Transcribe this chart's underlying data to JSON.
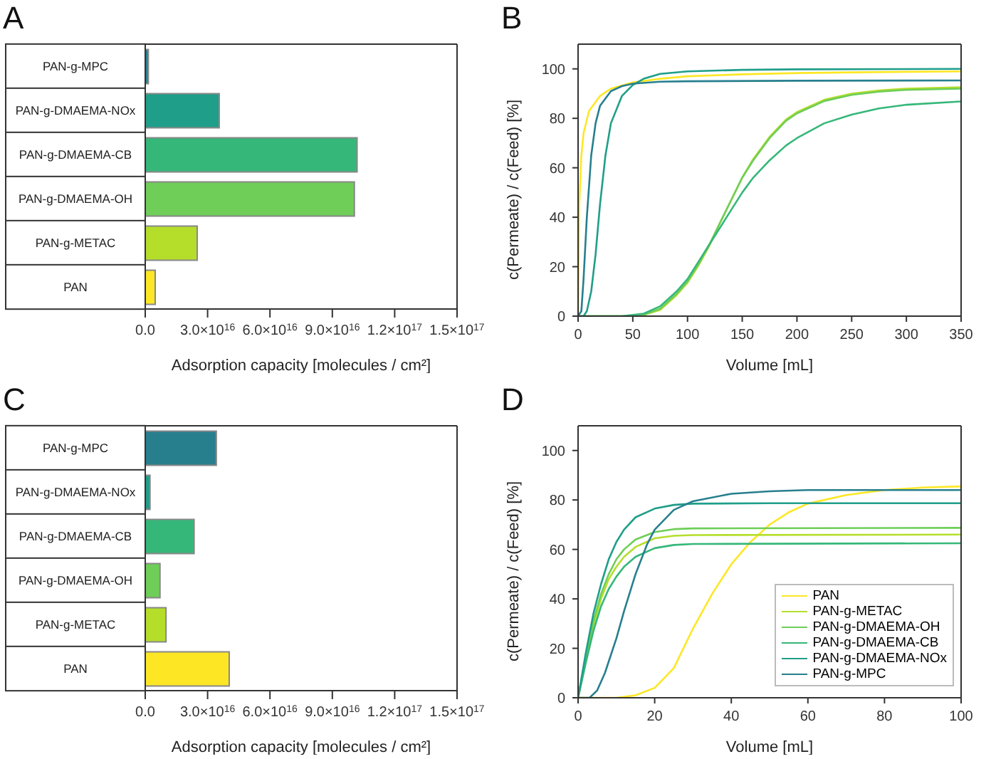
{
  "chart_data": [
    {
      "type": "bar",
      "title": "A",
      "orientation": "horizontal",
      "xlabel": "Adsorption capacity [molecules / cm²]",
      "categories": [
        "PAN-g-MPC",
        "PAN-g-DMAEMA-NOx",
        "PAN-g-DMAEMA-CB",
        "PAN-g-DMAEMA-OH",
        "PAN-g-METAC",
        "PAN"
      ],
      "values": [
        1500000000000000.0,
        3.56e+16,
        1.019e+17,
        1.006e+17,
        2.5e+16,
        4800000000000000.0
      ],
      "colors": [
        "#277f8e",
        "#1f9e89",
        "#35b779",
        "#6ece58",
        "#b5de2b",
        "#fde725"
      ],
      "xlim": [
        0,
        1.5e+17
      ],
      "xticks": [
        {
          "value": 0,
          "label": "0.0"
        },
        {
          "value": 3e+16,
          "label": "3.0×10$^{16}$"
        },
        {
          "value": 6e+16,
          "label": "6.0×10$^{16}$"
        },
        {
          "value": 9e+16,
          "label": "9.0×10$^{16}$"
        },
        {
          "value": 1.2e+17,
          "label": "1.2×10$^{17}$"
        },
        {
          "value": 1.5e+17,
          "label": "1.5×10$^{17}$"
        }
      ]
    },
    {
      "type": "line",
      "title": "B",
      "xlabel": "Volume [mL]",
      "ylabel": "c(Permeate) / c(Feed) [%]",
      "xlim": [
        0,
        350
      ],
      "xticks": [
        0,
        50,
        100,
        150,
        200,
        250,
        300,
        350
      ],
      "ylim": [
        0,
        110
      ],
      "yticks": [
        0,
        20,
        40,
        60,
        80,
        100
      ],
      "series": [
        {
          "color": "#fde725",
          "x": [
            0,
            1,
            3,
            5,
            10,
            20,
            30,
            50,
            75,
            100,
            150,
            200,
            250,
            300,
            350
          ],
          "values": [
            0,
            45,
            65,
            74,
            83,
            89,
            92,
            94.5,
            96,
            97,
            97.8,
            98.3,
            98.6,
            98.8,
            99
          ]
        },
        {
          "color": "#b5de2b",
          "x": [
            0,
            50,
            60,
            75,
            90,
            100,
            110,
            120,
            130,
            140,
            150,
            160,
            175,
            190,
            200,
            225,
            250,
            275,
            300,
            350
          ],
          "values": [
            0,
            0,
            0.5,
            2.5,
            8.5,
            13.5,
            20.5,
            28.5,
            38,
            47,
            56,
            63.5,
            72.5,
            79.5,
            82.5,
            87.5,
            90,
            91.3,
            92,
            92.6
          ]
        },
        {
          "color": "#6ece58",
          "x": [
            0,
            50,
            60,
            75,
            90,
            100,
            110,
            120,
            130,
            140,
            150,
            160,
            175,
            190,
            200,
            225,
            250,
            275,
            300,
            350
          ],
          "values": [
            0,
            0,
            0.5,
            3,
            9,
            14,
            21,
            29,
            38,
            47,
            56,
            63,
            72,
            79,
            82,
            87,
            89.5,
            90.8,
            91.5,
            92
          ]
        },
        {
          "color": "#35b779",
          "x": [
            0,
            40,
            60,
            75,
            90,
            100,
            110,
            120,
            130,
            140,
            150,
            160,
            175,
            190,
            200,
            225,
            250,
            275,
            300,
            350
          ],
          "values": [
            0,
            0,
            1,
            4,
            10,
            15,
            22,
            29,
            36,
            43,
            50,
            56,
            63,
            69,
            72,
            78,
            81.5,
            84,
            85.5,
            86.8
          ]
        },
        {
          "color": "#1f9e89",
          "x": [
            0,
            5,
            8,
            12,
            16,
            20,
            25,
            30,
            40,
            50,
            60,
            75,
            100,
            150,
            200,
            350
          ],
          "values": [
            0,
            0,
            2,
            10,
            25,
            45,
            65,
            78,
            89,
            93.5,
            96,
            98,
            99,
            99.6,
            99.8,
            100
          ]
        },
        {
          "color": "#277f8e",
          "x": [
            0,
            3,
            5,
            8,
            12,
            16,
            20,
            30,
            40,
            50,
            75,
            100,
            200,
            350
          ],
          "values": [
            0,
            2,
            15,
            40,
            65,
            78,
            85,
            91,
            93,
            94,
            94.8,
            95,
            95.2,
            95.3
          ]
        }
      ]
    },
    {
      "type": "bar",
      "title": "C",
      "orientation": "horizontal",
      "xlabel": "Adsorption capacity [molecules / cm²]",
      "categories": [
        "PAN-g-MPC",
        "PAN-g-DMAEMA-NOx",
        "PAN-g-DMAEMA-CB",
        "PAN-g-DMAEMA-OH",
        "PAN-g-METAC",
        "PAN"
      ],
      "values": [
        3.42e+16,
        2300000000000000.0,
        2.35e+16,
        7100000000000000.0,
        1e+16,
        4.04e+16
      ],
      "colors": [
        "#277f8e",
        "#1f9e89",
        "#35b779",
        "#6ece58",
        "#b5de2b",
        "#fde725"
      ],
      "xlim": [
        0,
        1.5e+17
      ],
      "xticks": [
        {
          "value": 0,
          "label": "0.0"
        },
        {
          "value": 3e+16,
          "label": "3.0×10$^{16}$"
        },
        {
          "value": 6e+16,
          "label": "6.0×10$^{16}$"
        },
        {
          "value": 9e+16,
          "label": "9.0×10$^{16}$"
        },
        {
          "value": 1.2e+17,
          "label": "1.2×10$^{17}$"
        },
        {
          "value": 1.5e+17,
          "label": "1.5×10$^{17}$"
        }
      ]
    },
    {
      "type": "line",
      "title": "D",
      "xlabel": "Volume [mL]",
      "ylabel": "c(Permeate) / c(Feed) [%]",
      "legend": "bottom right",
      "xlim": [
        0,
        100
      ],
      "xticks": [
        0,
        20,
        40,
        60,
        80,
        100
      ],
      "ylim": [
        0,
        110
      ],
      "yticks": [
        0,
        20,
        40,
        60,
        80,
        100
      ],
      "series": [
        {
          "name": "PAN",
          "color": "#fde725",
          "x": [
            0,
            10,
            15,
            20,
            25,
            30,
            35,
            40,
            45,
            50,
            55,
            60,
            70,
            80,
            90,
            100
          ],
          "values": [
            0,
            0,
            1,
            4,
            12,
            28,
            42,
            54,
            63,
            70,
            75,
            78.5,
            82,
            84,
            85,
            85.5
          ]
        },
        {
          "name": "PAN-g-METAC",
          "color": "#b5de2b",
          "x": [
            0,
            2,
            4,
            6,
            8,
            10,
            12,
            15,
            20,
            25,
            30,
            100
          ],
          "values": [
            0,
            15,
            29,
            40,
            48,
            53,
            57,
            61,
            64.5,
            65.5,
            65.8,
            66
          ]
        },
        {
          "name": "PAN-g-DMAEMA-OH",
          "color": "#6ece58",
          "x": [
            0,
            2,
            4,
            6,
            8,
            10,
            12,
            15,
            20,
            25,
            30,
            100
          ],
          "values": [
            0,
            16,
            31,
            42,
            50,
            56,
            60,
            64,
            67,
            68.2,
            68.5,
            68.7
          ]
        },
        {
          "name": "PAN-g-DMAEMA-CB",
          "color": "#35b779",
          "x": [
            0,
            2,
            4,
            6,
            8,
            10,
            12,
            15,
            20,
            25,
            30,
            100
          ],
          "values": [
            0,
            14,
            27,
            37,
            44,
            49,
            53,
            57,
            60.5,
            61.8,
            62.2,
            62.5
          ]
        },
        {
          "name": "PAN-g-DMAEMA-NOx",
          "color": "#1f9e89",
          "x": [
            0,
            2,
            4,
            6,
            8,
            10,
            12,
            15,
            20,
            25,
            30,
            50,
            100
          ],
          "values": [
            0,
            18,
            34,
            46,
            56,
            63,
            68,
            73,
            76.5,
            78,
            78.5,
            78.7,
            78.7
          ]
        },
        {
          "name": "PAN-g-MPC",
          "color": "#277f8e",
          "x": [
            0,
            3,
            5,
            7,
            10,
            12,
            15,
            18,
            20,
            25,
            30,
            40,
            50,
            60,
            100
          ],
          "values": [
            0,
            0,
            3,
            10,
            24,
            35,
            50,
            62,
            68,
            76,
            79.5,
            82.5,
            83.5,
            84,
            84
          ]
        }
      ]
    }
  ]
}
